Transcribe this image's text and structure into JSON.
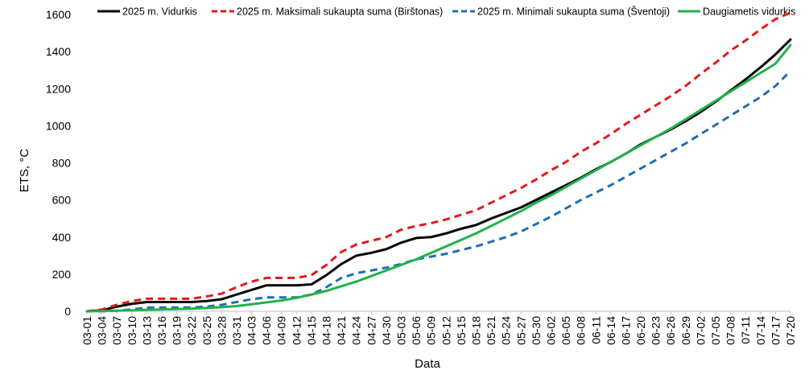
{
  "chart_data": {
    "type": "line",
    "xlabel": "Data",
    "ylabel": "ETS, °C",
    "ylim": [
      0,
      1600
    ],
    "yticks": [
      0,
      200,
      400,
      600,
      800,
      1000,
      1200,
      1400,
      1600
    ],
    "grid": false,
    "legend_position": "top",
    "x": [
      "03-01",
      "03-04",
      "03-07",
      "03-10",
      "03-13",
      "03-16",
      "03-19",
      "03-22",
      "03-25",
      "03-28",
      "03-31",
      "04-03",
      "04-06",
      "04-09",
      "04-12",
      "04-15",
      "04-18",
      "04-21",
      "04-24",
      "04-27",
      "04-30",
      "05-03",
      "05-06",
      "05-09",
      "05-12",
      "05-15",
      "05-18",
      "05-21",
      "05-24",
      "05-27",
      "05-30",
      "06-02",
      "06-05",
      "06-08",
      "06-11",
      "06-14",
      "06-17",
      "06-20",
      "06-23",
      "06-26",
      "06-29",
      "07-02",
      "07-05",
      "07-08",
      "07-11",
      "07-14",
      "07-17",
      "07-20"
    ],
    "series": [
      {
        "name": "2025 m. Vidurkis",
        "color": "#000000",
        "dash": "solid",
        "values": [
          0,
          5,
          25,
          40,
          50,
          50,
          50,
          50,
          55,
          65,
          90,
          115,
          140,
          140,
          140,
          145,
          195,
          255,
          300,
          315,
          335,
          370,
          395,
          400,
          420,
          445,
          465,
          500,
          530,
          560,
          600,
          640,
          680,
          720,
          765,
          805,
          850,
          900,
          940,
          980,
          1025,
          1075,
          1130,
          1190,
          1250,
          1315,
          1385,
          1465
        ]
      },
      {
        "name": "2025 m. Maksimali sukaupta suma (Birštonas)",
        "color": "#e31a1c",
        "dash": "dashed",
        "values": [
          0,
          10,
          35,
          55,
          68,
          68,
          68,
          68,
          80,
          95,
          130,
          160,
          180,
          180,
          180,
          195,
          250,
          320,
          360,
          380,
          400,
          440,
          460,
          475,
          495,
          520,
          545,
          585,
          625,
          665,
          710,
          760,
          805,
          860,
          905,
          955,
          1010,
          1060,
          1110,
          1160,
          1215,
          1280,
          1340,
          1405,
          1460,
          1520,
          1575,
          1610
        ]
      },
      {
        "name": "2025 m. Minimali sukaupta suma (Šventoji)",
        "color": "#1f6fb4",
        "dash": "dashed",
        "values": [
          0,
          0,
          3,
          10,
          20,
          20,
          20,
          20,
          25,
          35,
          50,
          65,
          75,
          75,
          75,
          90,
          130,
          180,
          205,
          220,
          235,
          255,
          280,
          295,
          310,
          330,
          350,
          375,
          400,
          430,
          470,
          510,
          555,
          600,
          640,
          680,
          725,
          770,
          815,
          860,
          905,
          955,
          1005,
          1055,
          1105,
          1155,
          1215,
          1295
        ]
      },
      {
        "name": "Daugiametis vidurkis",
        "color": "#22b14c",
        "dash": "solid",
        "values": [
          0,
          1,
          3,
          5,
          8,
          10,
          12,
          14,
          18,
          22,
          28,
          38,
          48,
          58,
          72,
          90,
          110,
          135,
          160,
          190,
          220,
          250,
          280,
          315,
          350,
          385,
          420,
          460,
          500,
          540,
          585,
          625,
          670,
          715,
          760,
          805,
          850,
          895,
          940,
          985,
          1035,
          1085,
          1135,
          1185,
          1235,
          1285,
          1335,
          1435
        ]
      }
    ]
  }
}
